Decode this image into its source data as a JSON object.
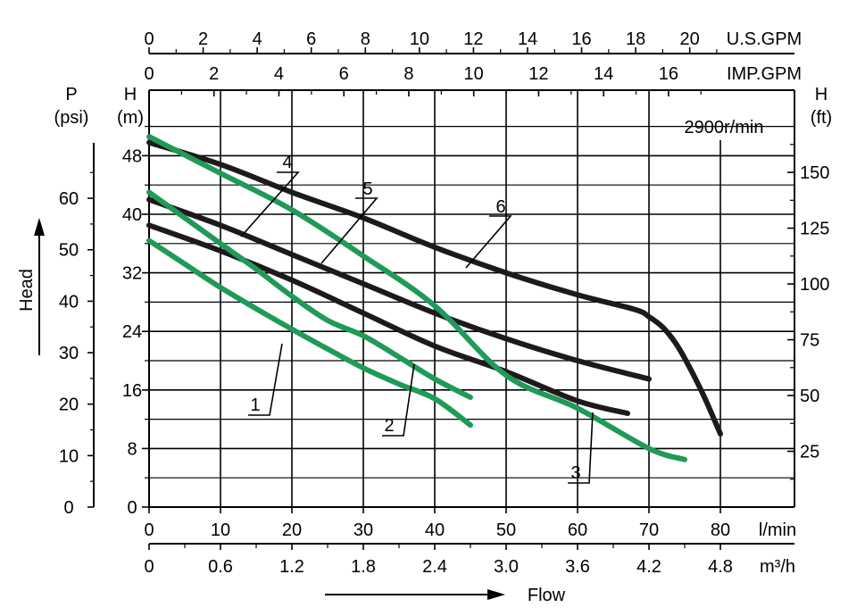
{
  "chart_data": {
    "type": "line",
    "speed_label": "2900r/min",
    "x_axis": {
      "unit_label": "l/min",
      "range": [
        0,
        90
      ],
      "ticks": [
        "0",
        "10",
        "20",
        "30",
        "40",
        "50",
        "60",
        "70",
        "80"
      ]
    },
    "x_axis_m3h": {
      "unit_label": "m³/h",
      "ticks": [
        "0",
        "0.6",
        "1.2",
        "1.8",
        "2.4",
        "3.0",
        "3.6",
        "4.2",
        "4.8"
      ]
    },
    "x_axis_usgpm": {
      "unit_label": "U.S.GPM",
      "ticks": [
        "0",
        "2",
        "4",
        "6",
        "8",
        "10",
        "12",
        "14",
        "16",
        "18",
        "20"
      ]
    },
    "x_axis_impgpm": {
      "unit_label": "IMP.GPM",
      "ticks": [
        "0",
        "2",
        "4",
        "6",
        "8",
        "10",
        "12",
        "14",
        "16"
      ]
    },
    "y_axis_m": {
      "title": "H",
      "unit_label": "(m)",
      "range": [
        0,
        56
      ],
      "ticks": [
        "0",
        "8",
        "16",
        "24",
        "32",
        "40",
        "48"
      ]
    },
    "y_axis_psi": {
      "title": "P",
      "unit_label": "(psi)",
      "ticks": [
        "0",
        "10",
        "20",
        "30",
        "40",
        "50",
        "60"
      ]
    },
    "y_axis_ft": {
      "title": "H",
      "unit_label": "(ft)",
      "ticks": [
        "25",
        "50",
        "75",
        "100",
        "125",
        "150"
      ]
    },
    "head_label": "Head",
    "flow_label": "Flow",
    "series": [
      {
        "name": "1",
        "color": "#1f9a57",
        "points": [
          [
            0,
            36.4
          ],
          [
            5,
            33.2
          ],
          [
            10,
            30.0
          ],
          [
            15,
            27.1
          ],
          [
            20,
            24.3
          ],
          [
            25,
            21.6
          ],
          [
            30,
            19.0
          ],
          [
            35,
            16.8
          ],
          [
            40,
            14.8
          ],
          [
            45,
            11.2
          ]
        ]
      },
      {
        "name": "2",
        "color": "#1f9a57",
        "points": [
          [
            0,
            43.0
          ],
          [
            5,
            39.5
          ],
          [
            10,
            36.0
          ],
          [
            15,
            32.5
          ],
          [
            20,
            28.8
          ],
          [
            25,
            25.5
          ],
          [
            30,
            23.4
          ],
          [
            35,
            20.5
          ],
          [
            40,
            17.5
          ],
          [
            45,
            15.0
          ]
        ]
      },
      {
        "name": "3",
        "color": "#1f9a57",
        "points": [
          [
            0,
            50.6
          ],
          [
            10,
            45.6
          ],
          [
            20,
            40.6
          ],
          [
            30,
            34.3
          ],
          [
            40,
            27.5
          ],
          [
            50,
            18.0
          ],
          [
            60,
            13.5
          ],
          [
            70,
            8.0
          ],
          [
            75,
            6.5
          ]
        ]
      },
      {
        "name": "4",
        "color": "#1e1a1b",
        "points": [
          [
            0,
            38.5
          ],
          [
            10,
            35.0
          ],
          [
            20,
            31.0
          ],
          [
            30,
            26.5
          ],
          [
            40,
            22.0
          ],
          [
            50,
            18.5
          ],
          [
            60,
            14.5
          ],
          [
            67,
            12.8
          ]
        ]
      },
      {
        "name": "5",
        "color": "#1e1a1b",
        "points": [
          [
            0,
            42.0
          ],
          [
            10,
            38.5
          ],
          [
            20,
            34.5
          ],
          [
            30,
            30.5
          ],
          [
            40,
            26.5
          ],
          [
            50,
            23.0
          ],
          [
            60,
            20.0
          ],
          [
            70,
            17.5
          ]
        ]
      },
      {
        "name": "6",
        "color": "#1e1a1b",
        "points": [
          [
            0,
            49.8
          ],
          [
            10,
            46.8
          ],
          [
            20,
            43.0
          ],
          [
            30,
            39.5
          ],
          [
            40,
            35.5
          ],
          [
            50,
            32.0
          ],
          [
            60,
            29.0
          ],
          [
            68,
            27.0
          ],
          [
            70,
            26.0
          ],
          [
            72,
            24.5
          ],
          [
            74,
            22.0
          ],
          [
            76,
            18.5
          ],
          [
            78,
            14.5
          ],
          [
            80,
            10.0
          ]
        ]
      }
    ]
  }
}
